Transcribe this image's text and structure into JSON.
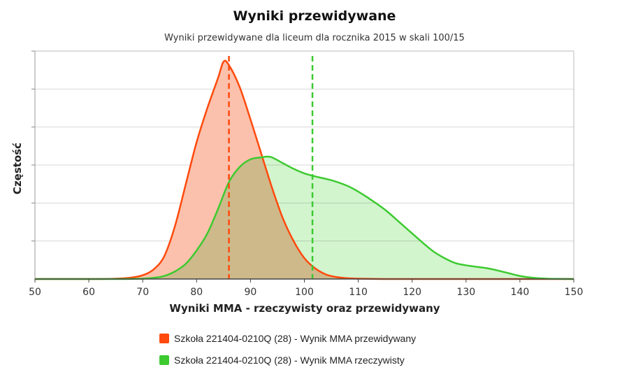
{
  "chart_data": {
    "type": "area",
    "title": "Wyniki przewidywane",
    "subtitle": "Wyniki przewidywane dla liceum dla rocznika 2015 w skali 100/15",
    "xlabel": "Wyniki MMA - rzeczywisty oraz przewidywany",
    "ylabel": "Częstość",
    "xlim": [
      50,
      150
    ],
    "ylim": [
      0,
      6
    ],
    "xticks": [
      50,
      60,
      70,
      80,
      90,
      100,
      110,
      120,
      130,
      140,
      150
    ],
    "grid": true,
    "legend_position": "bottom",
    "series": [
      {
        "name": "Szkoła 221404-0210Q (28) - Wynik MMA przewidywany",
        "color": "#ff4a0d",
        "fill": "#fbc1ac",
        "mean": 86,
        "x": [
          50,
          60,
          65,
          68,
          70,
          72,
          74,
          76,
          78,
          80,
          82,
          84,
          85,
          86,
          88,
          90,
          92,
          94,
          96,
          98,
          100,
          102,
          104,
          106,
          108,
          110,
          115,
          120,
          150
        ],
        "y": [
          0,
          0,
          0.01,
          0.04,
          0.1,
          0.25,
          0.6,
          1.4,
          2.5,
          3.6,
          4.5,
          5.3,
          5.72,
          5.63,
          5.05,
          4.2,
          3.3,
          2.4,
          1.6,
          1.0,
          0.55,
          0.28,
          0.12,
          0.05,
          0.02,
          0.01,
          0,
          0,
          0
        ]
      },
      {
        "name": "Szkoła 221404-0210Q (28) - Wynik MMA rzeczywisty",
        "color": "#3dca30",
        "fill": "#c3f1bd",
        "mean": 101.5,
        "x": [
          50,
          60,
          65,
          70,
          72,
          74,
          76,
          78,
          80,
          82,
          84,
          86,
          88,
          90,
          92,
          93,
          94,
          96,
          98,
          100,
          102,
          105,
          108,
          110,
          112,
          115,
          118,
          120,
          122,
          124,
          126,
          128,
          130,
          132,
          134,
          136,
          138,
          140,
          142,
          145,
          150
        ],
        "y": [
          0,
          0,
          0,
          0.01,
          0.03,
          0.08,
          0.2,
          0.4,
          0.75,
          1.2,
          1.85,
          2.55,
          2.95,
          3.15,
          3.2,
          3.22,
          3.2,
          3.05,
          2.9,
          2.78,
          2.7,
          2.6,
          2.45,
          2.3,
          2.12,
          1.82,
          1.45,
          1.2,
          0.95,
          0.72,
          0.55,
          0.42,
          0.36,
          0.32,
          0.28,
          0.22,
          0.15,
          0.08,
          0.04,
          0.01,
          0
        ]
      }
    ]
  }
}
